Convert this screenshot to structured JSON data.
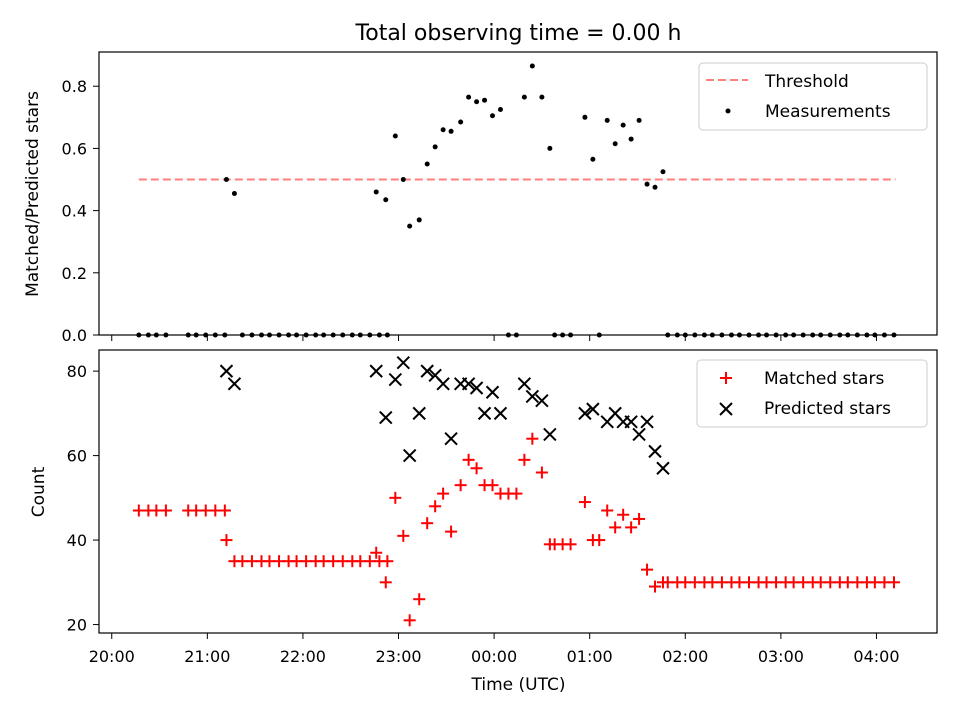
{
  "title": "Total observing time = 0.00 h",
  "chart_data": [
    {
      "type": "scatter",
      "ylabel": "Matched/Predicted stars",
      "ylim": [
        0,
        0.91
      ],
      "yticks": [
        "0.0",
        "0.2",
        "0.4",
        "0.6",
        "0.8"
      ],
      "legend_position": "top-right",
      "threshold": {
        "name": "Threshold",
        "value": 0.5,
        "color": "#ff7f7f",
        "x_start": "20:17",
        "x_end": "04:12"
      },
      "series": [
        {
          "name": "Measurements",
          "color": "#000000",
          "marker": "dot",
          "points": [
            [
              "20:17",
              0
            ],
            [
              "20:23",
              0
            ],
            [
              "20:28",
              0
            ],
            [
              "20:34",
              0
            ],
            [
              "20:48",
              0
            ],
            [
              "20:53",
              0
            ],
            [
              "20:59",
              0
            ],
            [
              "21:05",
              0
            ],
            [
              "21:11",
              0
            ],
            [
              "21:12",
              0.5
            ],
            [
              "21:17",
              0.455
            ],
            [
              "21:22",
              0
            ],
            [
              "21:28",
              0
            ],
            [
              "21:34",
              0
            ],
            [
              "21:39",
              0
            ],
            [
              "21:45",
              0
            ],
            [
              "21:51",
              0
            ],
            [
              "21:56",
              0
            ],
            [
              "22:02",
              0
            ],
            [
              "22:08",
              0
            ],
            [
              "22:13",
              0
            ],
            [
              "22:19",
              0
            ],
            [
              "22:25",
              0
            ],
            [
              "22:31",
              0
            ],
            [
              "22:36",
              0
            ],
            [
              "22:42",
              0
            ],
            [
              "22:48",
              0
            ],
            [
              "22:53",
              0
            ],
            [
              "22:46",
              0.46
            ],
            [
              "22:52",
              0.435
            ],
            [
              "22:58",
              0.64
            ],
            [
              "23:03",
              0.5
            ],
            [
              "23:07",
              0.35
            ],
            [
              "23:13",
              0.37
            ],
            [
              "23:18",
              0.55
            ],
            [
              "23:23",
              0.605
            ],
            [
              "23:28",
              0.66
            ],
            [
              "23:33",
              0.655
            ],
            [
              "23:39",
              0.685
            ],
            [
              "23:44",
              0.765
            ],
            [
              "23:49",
              0.75
            ],
            [
              "23:54",
              0.755
            ],
            [
              "23:59",
              0.705
            ],
            [
              "00:04",
              0.725
            ],
            [
              "00:09",
              0
            ],
            [
              "00:14",
              0
            ],
            [
              "00:19",
              0.765
            ],
            [
              "00:24",
              0.865
            ],
            [
              "00:30",
              0.765
            ],
            [
              "00:35",
              0.6
            ],
            [
              "00:38",
              0
            ],
            [
              "00:43",
              0
            ],
            [
              "00:48",
              0
            ],
            [
              "00:57",
              0.7
            ],
            [
              "01:02",
              0.565
            ],
            [
              "01:06",
              0
            ],
            [
              "01:11",
              0.69
            ],
            [
              "01:16",
              0.615
            ],
            [
              "01:21",
              0.675
            ],
            [
              "01:26",
              0.63
            ],
            [
              "01:31",
              0.69
            ],
            [
              "01:36",
              0.485
            ],
            [
              "01:41",
              0.475
            ],
            [
              "01:46",
              0.525
            ],
            [
              "01:49",
              0
            ],
            [
              "01:55",
              0
            ],
            [
              "02:00",
              0
            ],
            [
              "02:06",
              0
            ],
            [
              "02:12",
              0
            ],
            [
              "02:17",
              0
            ],
            [
              "02:23",
              0
            ],
            [
              "02:29",
              0
            ],
            [
              "02:34",
              0
            ],
            [
              "02:40",
              0
            ],
            [
              "02:46",
              0
            ],
            [
              "02:51",
              0
            ],
            [
              "02:57",
              0
            ],
            [
              "03:03",
              0
            ],
            [
              "03:08",
              0
            ],
            [
              "03:14",
              0
            ],
            [
              "03:20",
              0
            ],
            [
              "03:25",
              0
            ],
            [
              "03:31",
              0
            ],
            [
              "03:37",
              0
            ],
            [
              "03:42",
              0
            ],
            [
              "03:48",
              0
            ],
            [
              "03:54",
              0
            ],
            [
              "03:59",
              0
            ],
            [
              "04:05",
              0
            ],
            [
              "04:11",
              0
            ]
          ]
        }
      ]
    },
    {
      "type": "scatter",
      "xlabel": "Time (UTC)",
      "ylabel": "Count",
      "ylim": [
        18,
        85
      ],
      "xlim": [
        "19:52",
        "04:38"
      ],
      "xticks": [
        "20:00",
        "21:00",
        "22:00",
        "23:00",
        "00:00",
        "01:00",
        "02:00",
        "03:00",
        "04:00"
      ],
      "yticks": [
        "20",
        "40",
        "60",
        "80"
      ],
      "legend_position": "top-right",
      "series": [
        {
          "name": "Matched stars",
          "color": "#ff0000",
          "marker": "plus",
          "points": [
            [
              "20:17",
              47
            ],
            [
              "20:23",
              47
            ],
            [
              "20:28",
              47
            ],
            [
              "20:34",
              47
            ],
            [
              "20:48",
              47
            ],
            [
              "20:53",
              47
            ],
            [
              "20:59",
              47
            ],
            [
              "21:05",
              47
            ],
            [
              "21:11",
              47
            ],
            [
              "21:12",
              40
            ],
            [
              "21:17",
              35
            ],
            [
              "21:22",
              35
            ],
            [
              "21:28",
              35
            ],
            [
              "21:34",
              35
            ],
            [
              "21:39",
              35
            ],
            [
              "21:45",
              35
            ],
            [
              "21:51",
              35
            ],
            [
              "21:56",
              35
            ],
            [
              "22:02",
              35
            ],
            [
              "22:08",
              35
            ],
            [
              "22:13",
              35
            ],
            [
              "22:19",
              35
            ],
            [
              "22:25",
              35
            ],
            [
              "22:31",
              35
            ],
            [
              "22:36",
              35
            ],
            [
              "22:42",
              35
            ],
            [
              "22:48",
              35
            ],
            [
              "22:53",
              35
            ],
            [
              "22:46",
              37
            ],
            [
              "22:52",
              30
            ],
            [
              "22:58",
              50
            ],
            [
              "23:03",
              41
            ],
            [
              "23:07",
              21
            ],
            [
              "23:13",
              26
            ],
            [
              "23:18",
              44
            ],
            [
              "23:23",
              48
            ],
            [
              "23:28",
              51
            ],
            [
              "23:33",
              42
            ],
            [
              "23:39",
              53
            ],
            [
              "23:44",
              59
            ],
            [
              "23:49",
              57
            ],
            [
              "23:54",
              53
            ],
            [
              "23:59",
              53
            ],
            [
              "00:04",
              51
            ],
            [
              "00:09",
              51
            ],
            [
              "00:14",
              51
            ],
            [
              "00:19",
              59
            ],
            [
              "00:24",
              64
            ],
            [
              "00:30",
              56
            ],
            [
              "00:35",
              39
            ],
            [
              "00:38",
              39
            ],
            [
              "00:43",
              39
            ],
            [
              "00:48",
              39
            ],
            [
              "00:57",
              49
            ],
            [
              "01:02",
              40
            ],
            [
              "01:06",
              40
            ],
            [
              "01:11",
              47
            ],
            [
              "01:16",
              43
            ],
            [
              "01:21",
              46
            ],
            [
              "01:26",
              43
            ],
            [
              "01:31",
              45
            ],
            [
              "01:36",
              33
            ],
            [
              "01:41",
              29
            ],
            [
              "01:46",
              30
            ],
            [
              "01:49",
              30
            ],
            [
              "01:55",
              30
            ],
            [
              "02:00",
              30
            ],
            [
              "02:06",
              30
            ],
            [
              "02:12",
              30
            ],
            [
              "02:17",
              30
            ],
            [
              "02:23",
              30
            ],
            [
              "02:29",
              30
            ],
            [
              "02:34",
              30
            ],
            [
              "02:40",
              30
            ],
            [
              "02:46",
              30
            ],
            [
              "02:51",
              30
            ],
            [
              "02:57",
              30
            ],
            [
              "03:03",
              30
            ],
            [
              "03:08",
              30
            ],
            [
              "03:14",
              30
            ],
            [
              "03:20",
              30
            ],
            [
              "03:25",
              30
            ],
            [
              "03:31",
              30
            ],
            [
              "03:37",
              30
            ],
            [
              "03:42",
              30
            ],
            [
              "03:48",
              30
            ],
            [
              "03:54",
              30
            ],
            [
              "03:59",
              30
            ],
            [
              "04:05",
              30
            ],
            [
              "04:11",
              30
            ]
          ]
        },
        {
          "name": "Predicted stars",
          "color": "#000000",
          "marker": "x",
          "points": [
            [
              "21:12",
              80
            ],
            [
              "21:17",
              77
            ],
            [
              "22:46",
              80
            ],
            [
              "22:52",
              69
            ],
            [
              "22:58",
              78
            ],
            [
              "23:03",
              82
            ],
            [
              "23:07",
              60
            ],
            [
              "23:13",
              70
            ],
            [
              "23:18",
              80
            ],
            [
              "23:23",
              79
            ],
            [
              "23:28",
              77
            ],
            [
              "23:33",
              64
            ],
            [
              "23:39",
              77
            ],
            [
              "23:44",
              77
            ],
            [
              "23:49",
              76
            ],
            [
              "23:54",
              70
            ],
            [
              "23:59",
              75
            ],
            [
              "00:04",
              70
            ],
            [
              "00:19",
              77
            ],
            [
              "00:24",
              74
            ],
            [
              "00:30",
              73
            ],
            [
              "00:35",
              65
            ],
            [
              "00:57",
              70
            ],
            [
              "01:02",
              71
            ],
            [
              "01:11",
              68
            ],
            [
              "01:16",
              70
            ],
            [
              "01:21",
              68
            ],
            [
              "01:26",
              68
            ],
            [
              "01:31",
              65
            ],
            [
              "01:36",
              68
            ],
            [
              "01:41",
              61
            ],
            [
              "01:46",
              57
            ]
          ]
        }
      ]
    }
  ]
}
